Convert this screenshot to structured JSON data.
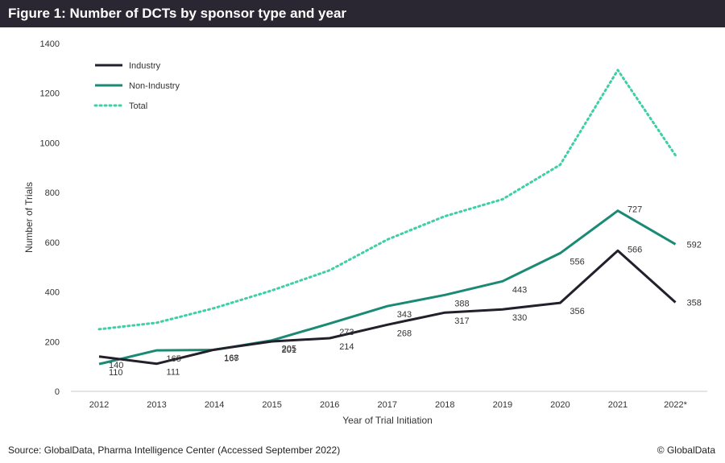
{
  "header": {
    "title": "Figure 1: Number of DCTs by sponsor type and year"
  },
  "footer": {
    "source": "Source: GlobalData, Pharma Intelligence Center (Accessed September 2022)",
    "copyright": "© GlobalData"
  },
  "chart_data": {
    "type": "line",
    "title": "Figure 1: Number of DCTs by sponsor type and year",
    "xlabel": "Year of Trial Initiation",
    "ylabel": "Number of Trials",
    "categories": [
      "2012",
      "2013",
      "2014",
      "2015",
      "2016",
      "2017",
      "2018",
      "2019",
      "2020",
      "2021",
      "2022*"
    ],
    "ylim": [
      0,
      1400
    ],
    "yticks": [
      0,
      200,
      400,
      600,
      800,
      1000,
      1200,
      1400
    ],
    "grid": false,
    "legend": "top-left",
    "series": [
      {
        "name": "Industry",
        "values": [
          140,
          111,
          168,
          201,
          214,
          268,
          317,
          330,
          356,
          566,
          358
        ],
        "color": "#231f2b",
        "style": "solid",
        "labels": true
      },
      {
        "name": "Non-Industry",
        "values": [
          110,
          165,
          167,
          205,
          273,
          343,
          388,
          443,
          556,
          727,
          592
        ],
        "color": "#1a8a75",
        "style": "solid",
        "labels": true
      },
      {
        "name": "Total",
        "values": [
          250,
          276,
          335,
          406,
          487,
          611,
          705,
          773,
          912,
          1293,
          950
        ],
        "color": "#3ecfa6",
        "style": "dotted",
        "labels": false
      }
    ]
  }
}
